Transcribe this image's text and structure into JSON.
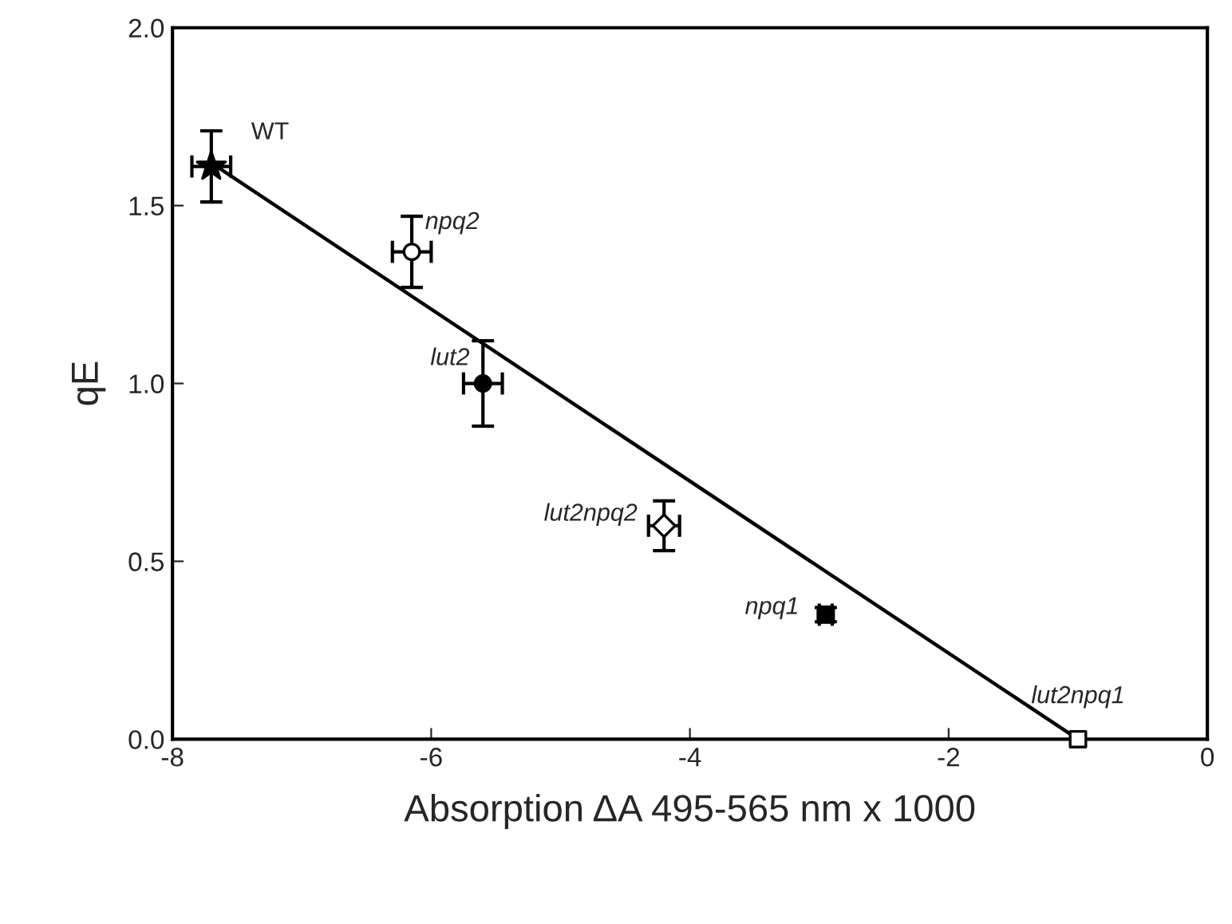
{
  "chart_data": {
    "type": "scatter",
    "xlabel": "Absorption ΔA 495-565 nm x 1000",
    "ylabel": "qE",
    "xlim": [
      -8,
      0
    ],
    "xticks": [
      -8,
      -6,
      -4,
      -2,
      0
    ],
    "ylim": [
      0,
      2.0
    ],
    "yticks": [
      {
        "value": 0,
        "label": "0.0"
      },
      {
        "value": 0.5,
        "label": "0.5"
      },
      {
        "value": 1.0,
        "label": "1.0"
      },
      {
        "value": 1.5,
        "label": "1.5"
      },
      {
        "value": 2.0,
        "label": "2.0"
      }
    ],
    "grid": false,
    "legend": false,
    "series": [
      {
        "type": "line",
        "x": [
          -7.7,
          -1.0
        ],
        "values": [
          1.62,
          0.0
        ],
        "color": "#000000",
        "marker": "none",
        "line_style": "solid"
      },
      {
        "name": "WT",
        "x": [
          -7.7
        ],
        "values": [
          1.61
        ],
        "errors": [
          [
            1.51,
            1.71
          ]
        ],
        "xerrors": [
          0.15
        ],
        "color": "#000000",
        "marker": "star"
      },
      {
        "name": "npq2",
        "x": [
          -6.15
        ],
        "values": [
          1.37
        ],
        "errors": [
          [
            1.27,
            1.47
          ]
        ],
        "xerrors": [
          0.15
        ],
        "color": "#ffffff",
        "marker": "circle"
      },
      {
        "name": "lut2",
        "x": [
          -5.6
        ],
        "values": [
          1.0
        ],
        "errors": [
          [
            0.88,
            1.12
          ]
        ],
        "xerrors": [
          0.15
        ],
        "color": "#000000",
        "marker": "circle"
      },
      {
        "name": "lut2npq2",
        "x": [
          -4.2
        ],
        "values": [
          0.6
        ],
        "errors": [
          [
            0.53,
            0.67
          ]
        ],
        "xerrors": [
          0.12
        ],
        "color": "#ffffff",
        "marker": "diamond"
      },
      {
        "name": "npq1",
        "x": [
          -2.95
        ],
        "values": [
          0.35
        ],
        "errors": [
          [
            0.33,
            0.37
          ]
        ],
        "xerrors": [
          0.05
        ],
        "color": "#000000",
        "marker": "square"
      },
      {
        "name": "lut2npq1",
        "x": [
          -1.0
        ],
        "values": [
          0.0
        ],
        "color": "#ffffff",
        "marker": "square"
      }
    ]
  }
}
